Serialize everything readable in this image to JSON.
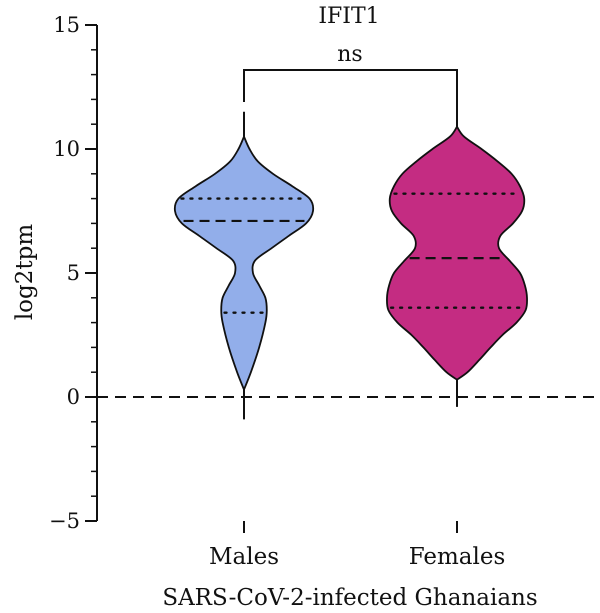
{
  "chart_data": {
    "type": "violin",
    "title": "IFIT1",
    "xlabel": "SARS-CoV-2-infected Ghanaians",
    "ylabel": "log2tpm",
    "ylim": [
      -5,
      15
    ],
    "yticks": [
      -5,
      0,
      5,
      10,
      15
    ],
    "ytick_labels": [
      "−5",
      "0",
      "5",
      "10",
      "15"
    ],
    "reference_line": {
      "y": 0,
      "style": "dashed"
    },
    "significance": {
      "label": "ns",
      "between": [
        "Males",
        "Females"
      ]
    },
    "categories": [
      "Males",
      "Females"
    ],
    "series": [
      {
        "category": "Males",
        "color": "#92aeea",
        "median": 7.1,
        "q1": 3.4,
        "q3": 8.0,
        "whisker_min": -0.9,
        "whisker_max": 11.5,
        "density": [
          [
            0.3,
            0.0
          ],
          [
            1.0,
            0.1
          ],
          [
            2.0,
            0.22
          ],
          [
            3.0,
            0.31
          ],
          [
            3.5,
            0.33
          ],
          [
            4.0,
            0.31
          ],
          [
            4.5,
            0.22
          ],
          [
            5.0,
            0.13
          ],
          [
            5.5,
            0.16
          ],
          [
            6.0,
            0.4
          ],
          [
            6.5,
            0.65
          ],
          [
            7.0,
            0.9
          ],
          [
            7.5,
            1.0
          ],
          [
            8.0,
            0.95
          ],
          [
            8.5,
            0.7
          ],
          [
            9.0,
            0.42
          ],
          [
            9.5,
            0.2
          ],
          [
            10.0,
            0.08
          ],
          [
            10.5,
            0.0
          ]
        ]
      },
      {
        "category": "Females",
        "color": "#c42c82",
        "median": 5.6,
        "q1": 3.6,
        "q3": 8.2,
        "whisker_min": -0.4,
        "whisker_max": 12.0,
        "density": [
          [
            0.7,
            0.0
          ],
          [
            1.0,
            0.15
          ],
          [
            1.5,
            0.32
          ],
          [
            2.0,
            0.48
          ],
          [
            2.5,
            0.65
          ],
          [
            3.0,
            0.85
          ],
          [
            3.5,
            0.98
          ],
          [
            4.0,
            1.0
          ],
          [
            4.5,
            0.97
          ],
          [
            5.0,
            0.9
          ],
          [
            5.5,
            0.75
          ],
          [
            6.0,
            0.6
          ],
          [
            6.5,
            0.62
          ],
          [
            7.0,
            0.8
          ],
          [
            7.5,
            0.93
          ],
          [
            8.0,
            0.96
          ],
          [
            8.5,
            0.9
          ],
          [
            9.0,
            0.78
          ],
          [
            9.5,
            0.58
          ],
          [
            10.0,
            0.35
          ],
          [
            10.5,
            0.1
          ],
          [
            10.9,
            0.0
          ]
        ]
      }
    ]
  }
}
